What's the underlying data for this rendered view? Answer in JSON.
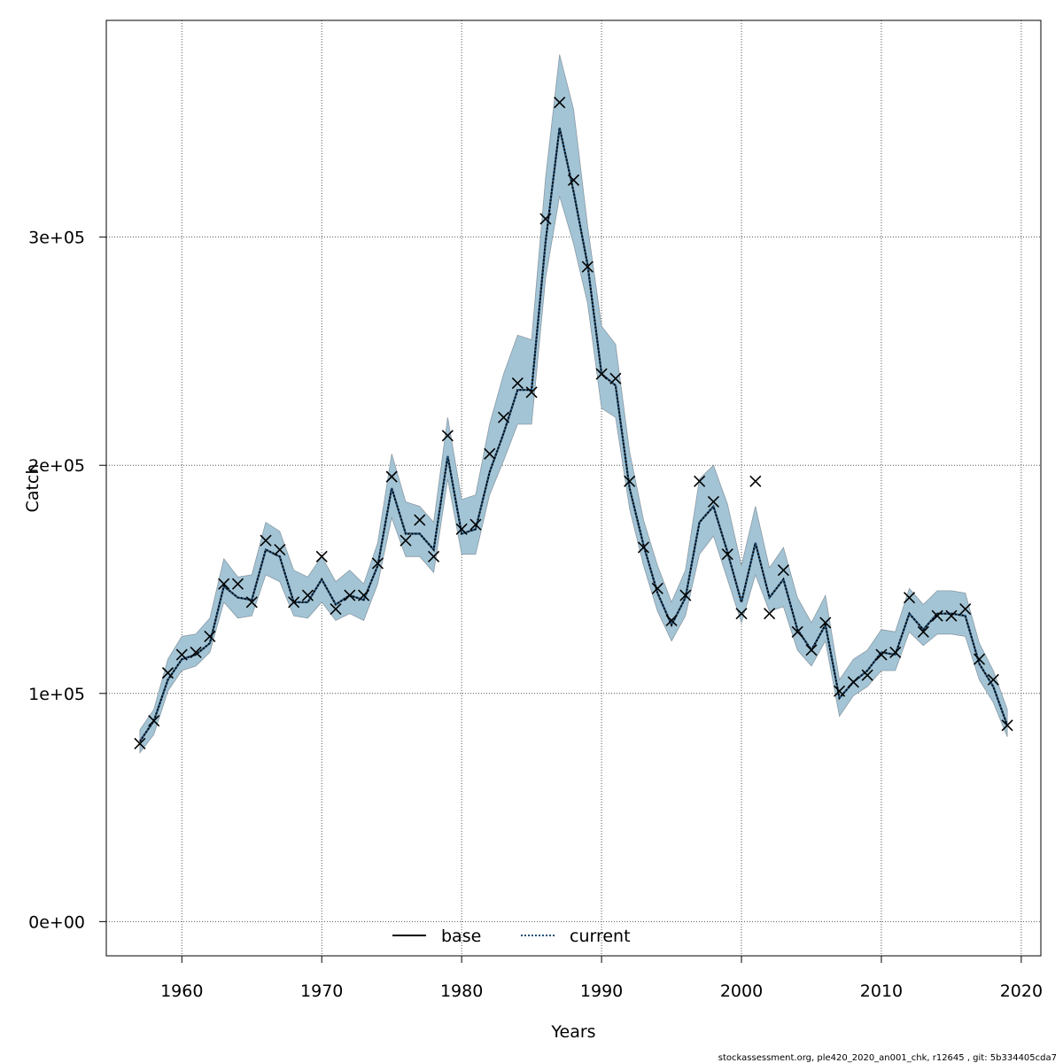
{
  "chart_data": {
    "type": "line",
    "title": "",
    "xlabel": "Years",
    "ylabel": "Catch",
    "xlim": [
      1954.6,
      2021.4
    ],
    "ylim": [
      -15000,
      395000
    ],
    "x_ticks": [
      1960,
      1970,
      1980,
      1990,
      2000,
      2010,
      2020
    ],
    "x_tick_labels": [
      "1960",
      "1970",
      "1980",
      "1990",
      "2000",
      "2010",
      "2020"
    ],
    "y_ticks": [
      0,
      100000,
      200000,
      300000
    ],
    "y_tick_labels": [
      "0e+00",
      "1e+05",
      "2e+05",
      "3e+05"
    ],
    "grid": true,
    "legend_position": "bottom-center",
    "colors": {
      "band": "#a3c4d5",
      "band_edge": "#8a9ba6",
      "current": "#1e4f7a",
      "base": "#000000",
      "points": "#000000",
      "grid": "#555555"
    },
    "x": [
      1957,
      1958,
      1959,
      1960,
      1961,
      1962,
      1963,
      1964,
      1965,
      1966,
      1967,
      1968,
      1969,
      1970,
      1971,
      1972,
      1973,
      1974,
      1975,
      1976,
      1977,
      1978,
      1979,
      1980,
      1981,
      1982,
      1983,
      1984,
      1985,
      1986,
      1987,
      1988,
      1989,
      1990,
      1991,
      1992,
      1993,
      1994,
      1995,
      1996,
      1997,
      1998,
      1999,
      2000,
      2001,
      2002,
      2003,
      2004,
      2005,
      2006,
      2007,
      2008,
      2009,
      2010,
      2011,
      2012,
      2013,
      2014,
      2015,
      2016,
      2017,
      2018,
      2019
    ],
    "series": [
      {
        "name": "current",
        "style": "dotted",
        "values": [
          79000,
          88000,
          106000,
          115000,
          117000,
          122000,
          147000,
          142000,
          141000,
          163000,
          160000,
          140000,
          140000,
          150000,
          139000,
          143000,
          141000,
          156000,
          190000,
          170000,
          170000,
          163000,
          204000,
          170000,
          172000,
          197000,
          214000,
          233000,
          233000,
          298000,
          348000,
          320000,
          288000,
          240000,
          235000,
          190000,
          165000,
          144000,
          130000,
          142000,
          175000,
          182000,
          162000,
          140000,
          166000,
          142000,
          150000,
          128000,
          119000,
          130000,
          98000,
          105000,
          110000,
          118000,
          117000,
          135000,
          128000,
          135000,
          135000,
          134000,
          113000,
          103000,
          86000
        ],
        "lower": [
          74000,
          82000,
          101000,
          110000,
          112000,
          118000,
          140000,
          133000,
          134000,
          152000,
          149000,
          134000,
          133000,
          140000,
          132000,
          135000,
          132000,
          148000,
          177000,
          160000,
          160000,
          153000,
          194000,
          161000,
          161000,
          187000,
          202000,
          218000,
          218000,
          282000,
          318000,
          297000,
          271000,
          225000,
          221000,
          181000,
          156000,
          136000,
          123000,
          134000,
          161000,
          169000,
          150000,
          131000,
          152000,
          136000,
          138000,
          119000,
          112000,
          123000,
          90000,
          99000,
          103000,
          110000,
          110000,
          127000,
          121000,
          126000,
          126000,
          125000,
          106000,
          96000,
          81000
        ],
        "upper": [
          84000,
          93000,
          115000,
          125000,
          126000,
          133000,
          159000,
          151000,
          152000,
          175000,
          171000,
          154000,
          151000,
          160000,
          149000,
          154000,
          148000,
          166000,
          205000,
          184000,
          182000,
          175000,
          221000,
          185000,
          187000,
          218000,
          240000,
          257000,
          255000,
          326000,
          380000,
          356000,
          305000,
          261000,
          253000,
          206000,
          176000,
          156000,
          140000,
          154000,
          194000,
          200000,
          183000,
          156000,
          182000,
          155000,
          164000,
          142000,
          131000,
          143000,
          106000,
          115000,
          119000,
          128000,
          127000,
          146000,
          139000,
          145000,
          145000,
          144000,
          122000,
          110000,
          93000
        ]
      },
      {
        "name": "base",
        "style": "points",
        "values": [
          78000,
          88000,
          109000,
          117000,
          118000,
          125000,
          148000,
          148000,
          140000,
          167000,
          163000,
          140000,
          143000,
          160000,
          137000,
          143000,
          143000,
          157000,
          195000,
          167000,
          176000,
          160000,
          213000,
          172000,
          174000,
          205000,
          221000,
          236000,
          232000,
          308000,
          359000,
          325000,
          287000,
          240000,
          238000,
          193000,
          164000,
          146000,
          132000,
          143000,
          193000,
          184000,
          161000,
          135000,
          193000,
          135000,
          154000,
          127000,
          119000,
          131000,
          101000,
          105000,
          108000,
          117000,
          118000,
          142000,
          127000,
          134000,
          134000,
          137000,
          115000,
          106000,
          86000
        ]
      }
    ],
    "legend": [
      {
        "name": "base",
        "label": "base"
      },
      {
        "name": "current",
        "label": "current"
      }
    ]
  },
  "footer": "stockassessment.org, ple420_2020_an001_chk, r12645 , git: 5b334405cda7"
}
